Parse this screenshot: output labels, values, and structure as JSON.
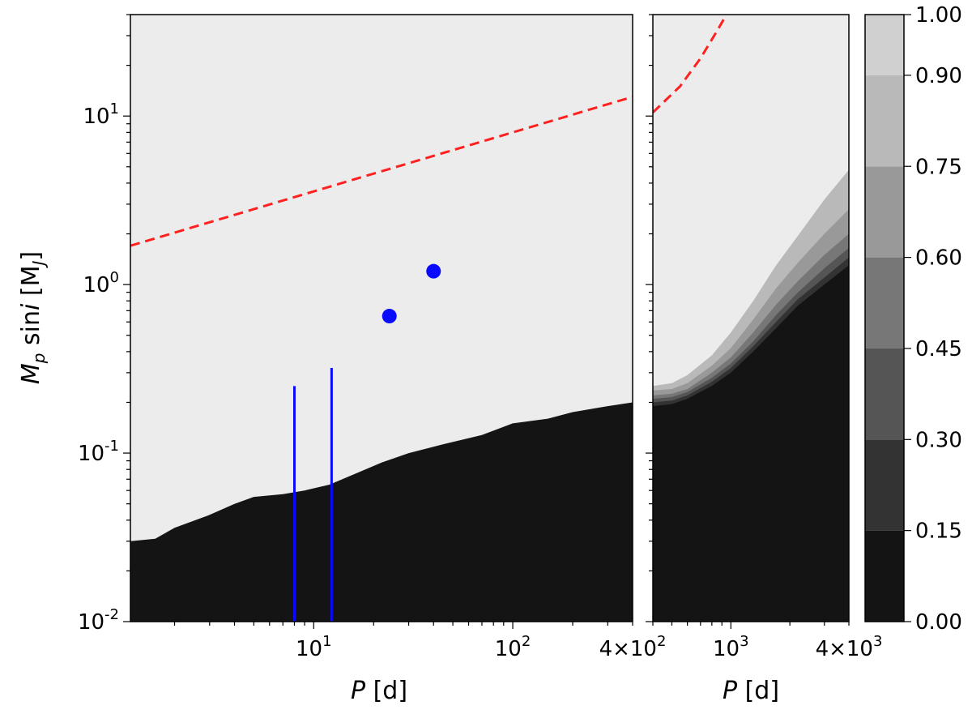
{
  "figure": {
    "y_axis_label": "M_p sin i [M_J]",
    "colorbar_ticks": [
      "0.00",
      "0.15",
      "0.30",
      "0.45",
      "0.60",
      "0.75",
      "0.90",
      "1.00"
    ],
    "colors": {
      "background_high": "#ececec",
      "background_low": "#141414",
      "dashed_line": "#ff2020",
      "planets": "#0a0aff"
    }
  },
  "chart_data": [
    {
      "type": "heatmap",
      "panel": "left",
      "xlabel": "P [d]",
      "ylabel": "M_p sin i [M_J]",
      "x_scale": "log",
      "y_scale": "log",
      "xlim": [
        1.2,
        400
      ],
      "ylim": [
        0.01,
        40
      ],
      "x_tick_labels": [
        "10^1",
        "10^2",
        "4×10^2"
      ],
      "y_tick_labels": [
        "10^-2",
        "10^-1",
        "10^0",
        "10^1"
      ],
      "detection_boundary": [
        {
          "P": 1.2,
          "M": 0.03
        },
        {
          "P": 1.6,
          "M": 0.031
        },
        {
          "P": 2.0,
          "M": 0.036
        },
        {
          "P": 3.0,
          "M": 0.043
        },
        {
          "P": 4.0,
          "M": 0.05
        },
        {
          "P": 5.0,
          "M": 0.055
        },
        {
          "P": 7.0,
          "M": 0.057
        },
        {
          "P": 9.0,
          "M": 0.06
        },
        {
          "P": 12.0,
          "M": 0.065
        },
        {
          "P": 16.0,
          "M": 0.075
        },
        {
          "P": 22.0,
          "M": 0.088
        },
        {
          "P": 30.0,
          "M": 0.1
        },
        {
          "P": 45.0,
          "M": 0.113
        },
        {
          "P": 70.0,
          "M": 0.128
        },
        {
          "P": 100.0,
          "M": 0.15
        },
        {
          "P": 150.0,
          "M": 0.16
        },
        {
          "P": 200.0,
          "M": 0.175
        },
        {
          "P": 300.0,
          "M": 0.19
        },
        {
          "P": 400.0,
          "M": 0.2
        }
      ],
      "dashed_line": [
        {
          "P": 1.2,
          "M": 1.7
        },
        {
          "P": 400.0,
          "M": 13
        }
      ],
      "planets": [
        {
          "P": 24,
          "M": 0.65
        },
        {
          "P": 40,
          "M": 1.2
        }
      ],
      "minimum_mass_lines": [
        {
          "P": 8.0,
          "M": 0.25
        },
        {
          "P": 12.3,
          "M": 0.32
        }
      ]
    },
    {
      "type": "heatmap",
      "panel": "right",
      "xlabel": "P [d]",
      "x_scale": "log",
      "y_scale": "log",
      "xlim": [
        400,
        4000
      ],
      "ylim": [
        0.01,
        40
      ],
      "x_tick_labels": [
        "10^3",
        "4×10^3"
      ],
      "colorbar_levels": [
        0.0,
        0.15,
        0.3,
        0.45,
        0.6,
        0.75,
        0.9,
        1.0
      ],
      "level_colors": [
        "#141414",
        "#333333",
        "#555555",
        "#777777",
        "#999999",
        "#b9b9b9",
        "#d0d0d0",
        "#ececec"
      ],
      "contour_boundaries": {
        "P": [
          400,
          500,
          600,
          800,
          1000,
          1300,
          1700,
          2200,
          3000,
          4000
        ],
        "levels": [
          {
            "p": 0.15,
            "M": [
              0.19,
              0.195,
              0.21,
              0.25,
              0.3,
              0.4,
              0.55,
              0.75,
              1.0,
              1.3
            ]
          },
          {
            "p": 0.3,
            "M": [
              0.2,
              0.205,
              0.22,
              0.265,
              0.32,
              0.43,
              0.6,
              0.82,
              1.1,
              1.45
            ]
          },
          {
            "p": 0.45,
            "M": [
              0.21,
              0.215,
              0.23,
              0.28,
              0.34,
              0.46,
              0.66,
              0.9,
              1.25,
              1.65
            ]
          },
          {
            "p": 0.6,
            "M": [
              0.22,
              0.225,
              0.24,
              0.3,
              0.37,
              0.52,
              0.76,
              1.05,
              1.5,
              2.0
            ]
          },
          {
            "p": 0.75,
            "M": [
              0.235,
              0.24,
              0.26,
              0.33,
              0.42,
              0.62,
              0.95,
              1.35,
              2.0,
              2.8
            ]
          },
          {
            "p": 0.9,
            "M": [
              0.25,
              0.26,
              0.29,
              0.38,
              0.52,
              0.8,
              1.3,
              1.95,
              3.2,
              4.8
            ]
          }
        ]
      },
      "dashed_line": [
        {
          "P": 400,
          "M": 10.5
        },
        {
          "P": 550,
          "M": 15
        },
        {
          "P": 700,
          "M": 22
        },
        {
          "P": 850,
          "M": 32
        },
        {
          "P": 950,
          "M": 40
        }
      ]
    }
  ]
}
